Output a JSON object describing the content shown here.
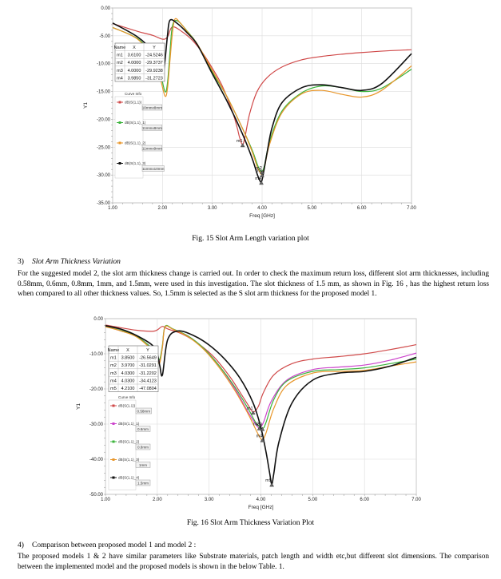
{
  "chart_data": [
    {
      "type": "line",
      "xlabel": "Freq [GHz]",
      "ylabel": "Y1",
      "xlim": [
        1.0,
        7.0
      ],
      "ylim": [
        -35.0,
        0.0
      ],
      "xticks": [
        "1.00",
        "2.00",
        "3.00",
        "4.00",
        "5.00",
        "6.00",
        "7.00"
      ],
      "yticks": [
        "0.00",
        "-5.00",
        "-10.00",
        "-15.00",
        "-20.00",
        "-25.00",
        "-30.00",
        "-35.00"
      ],
      "grid": true,
      "marker_table": {
        "headers": [
          "Name",
          "X",
          "Y"
        ],
        "rows": [
          [
            "m1",
            "3.6100",
            "-24.5246"
          ],
          [
            "m2",
            "4.0000",
            "-29.3737"
          ],
          [
            "m3",
            "4.0000",
            "-29.9238"
          ],
          [
            "m4",
            "3.9850",
            "-31.2723"
          ]
        ]
      },
      "curve_info_title": "Curve Info",
      "series": [
        {
          "name": "dB(S(1,1))",
          "label": "10mmx8mm",
          "color": "#d04a4a",
          "x": [
            1.0,
            1.5,
            1.8,
            2.0,
            2.1,
            2.2,
            2.4,
            2.6,
            2.8,
            3.0,
            3.2,
            3.4,
            3.5,
            3.55,
            3.61,
            3.66,
            3.75,
            3.9,
            4.1,
            4.4,
            4.8,
            5.2,
            5.6,
            6.0,
            6.5,
            7.0
          ],
          "y": [
            -2.8,
            -4.2,
            -4.9,
            -5.6,
            -5.2,
            -3.4,
            -4.3,
            -5.8,
            -8.0,
            -10.8,
            -14.0,
            -18.5,
            -21.5,
            -23.3,
            -24.52,
            -23.0,
            -19.0,
            -15.0,
            -12.5,
            -10.6,
            -9.3,
            -8.7,
            -8.3,
            -8.0,
            -7.7,
            -7.5
          ]
        },
        {
          "name": "dB(S(1,1)_1)",
          "label": "11mmx8mm",
          "color": "#3cb43c",
          "x": [
            1.0,
            1.5,
            1.8,
            1.95,
            2.05,
            2.1,
            2.15,
            2.2,
            2.3,
            2.5,
            2.7,
            3.0,
            3.3,
            3.6,
            3.8,
            3.9,
            3.95,
            4.0,
            4.05,
            4.15,
            4.4,
            4.8,
            5.2,
            5.6,
            6.0,
            6.4,
            7.0
          ],
          "y": [
            -3.5,
            -5.5,
            -8.5,
            -11.5,
            -15.0,
            -13.5,
            -8.0,
            -3.2,
            -2.3,
            -4.2,
            -6.5,
            -11.5,
            -16.0,
            -21.5,
            -25.5,
            -28.0,
            -29.0,
            -29.37,
            -28.2,
            -24.0,
            -18.5,
            -15.2,
            -14.0,
            -14.3,
            -15.0,
            -14.4,
            -11.0
          ]
        },
        {
          "name": "dB(S(1,1)_2)",
          "label": "11mmx9mm",
          "color": "#e8962a",
          "x": [
            1.0,
            1.5,
            1.8,
            1.95,
            2.05,
            2.1,
            2.15,
            2.2,
            2.25,
            2.35,
            2.5,
            2.7,
            3.0,
            3.3,
            3.6,
            3.8,
            3.9,
            3.95,
            4.0,
            4.05,
            4.15,
            4.4,
            4.8,
            5.2,
            5.6,
            6.0,
            6.4,
            7.0
          ],
          "y": [
            -3.5,
            -5.6,
            -9.0,
            -12.5,
            -15.8,
            -14.5,
            -9.5,
            -4.5,
            -2.0,
            -2.6,
            -4.3,
            -6.5,
            -11.2,
            -16.0,
            -21.5,
            -25.8,
            -28.5,
            -29.4,
            -29.92,
            -28.6,
            -24.5,
            -18.8,
            -15.4,
            -14.8,
            -15.5,
            -16.0,
            -14.8,
            -10.4
          ]
        },
        {
          "name": "dB(S(1,1)_3)",
          "label": "11mmx10mm",
          "color": "#111111",
          "x": [
            1.0,
            1.5,
            1.8,
            1.95,
            2.0,
            2.05,
            2.1,
            2.15,
            2.3,
            2.5,
            2.7,
            3.0,
            3.3,
            3.6,
            3.8,
            3.9,
            3.95,
            3.985,
            4.02,
            4.1,
            4.2,
            4.4,
            4.8,
            5.2,
            5.6,
            6.0,
            6.4,
            7.0
          ],
          "y": [
            -2.7,
            -5.2,
            -7.8,
            -10.8,
            -12.5,
            -9.5,
            -5.0,
            -2.2,
            -2.8,
            -4.5,
            -6.6,
            -11.8,
            -16.8,
            -22.5,
            -27.0,
            -29.8,
            -30.9,
            -31.27,
            -30.0,
            -26.0,
            -21.5,
            -17.0,
            -14.3,
            -13.8,
            -14.3,
            -14.8,
            -13.6,
            -8.2
          ]
        }
      ],
      "markers": [
        {
          "name": "m1",
          "x": 3.61,
          "y": -24.5246
        },
        {
          "name": "m2",
          "x": 4.0,
          "y": -29.3737
        },
        {
          "name": "m3",
          "x": 4.0,
          "y": -29.9238
        },
        {
          "name": "m4",
          "x": 3.985,
          "y": -31.2723
        }
      ]
    },
    {
      "type": "line",
      "xlabel": "Freq [GHz]",
      "ylabel": "Y1",
      "xlim": [
        1.0,
        7.0
      ],
      "ylim": [
        -50.0,
        0.0
      ],
      "xticks": [
        "1.00",
        "2.00",
        "3.00",
        "4.00",
        "5.00",
        "6.00",
        "7.00"
      ],
      "yticks": [
        "0.00",
        "-10.00",
        "-20.00",
        "-30.00",
        "-40.00",
        "-50.00"
      ],
      "grid": true,
      "marker_table": {
        "headers": [
          "Name",
          "X",
          "Y"
        ],
        "rows": [
          [
            "m1",
            "3.8500",
            "-26.5649"
          ],
          [
            "m2",
            "3.9700",
            "-31.0291"
          ],
          [
            "m3",
            "4.0300",
            "-31.2202"
          ],
          [
            "m4",
            "4.0300",
            "-34.4123"
          ],
          [
            "m5",
            "4.2100",
            "-47.0804"
          ]
        ]
      },
      "curve_info_title": "Curve Info",
      "series": [
        {
          "name": "dB(S(1,1))",
          "label": "0.58mm",
          "color": "#d04a4a",
          "x": [
            1.0,
            1.3,
            1.6,
            1.9,
            2.0,
            2.1,
            2.2,
            2.5,
            2.8,
            3.1,
            3.4,
            3.6,
            3.75,
            3.85,
            3.95,
            4.05,
            4.25,
            4.6,
            5.0,
            5.5,
            6.0,
            6.5,
            7.0
          ],
          "y": [
            -1.8,
            -2.6,
            -3.3,
            -3.6,
            -3.2,
            -2.2,
            -2.9,
            -4.5,
            -7.2,
            -11.0,
            -16.5,
            -21.0,
            -24.5,
            -26.56,
            -25.0,
            -21.0,
            -16.0,
            -12.8,
            -11.5,
            -10.8,
            -10.0,
            -8.8,
            -7.4
          ]
        },
        {
          "name": "dB(S(1,1)_1)",
          "label": "0.6mm",
          "color": "#cc44cc",
          "x": [
            1.0,
            1.3,
            1.6,
            1.9,
            2.0,
            2.05,
            2.1,
            2.15,
            2.3,
            2.6,
            2.9,
            3.2,
            3.5,
            3.75,
            3.9,
            3.97,
            4.05,
            4.2,
            4.5,
            5.0,
            5.5,
            6.0,
            6.5,
            7.0
          ],
          "y": [
            -2.2,
            -3.5,
            -5.0,
            -8.5,
            -11.5,
            -12.0,
            -8.0,
            -2.3,
            -3.0,
            -5.0,
            -8.5,
            -13.5,
            -20.0,
            -26.5,
            -30.0,
            -31.03,
            -29.5,
            -23.5,
            -17.5,
            -14.5,
            -13.8,
            -13.2,
            -11.8,
            -9.8
          ]
        },
        {
          "name": "dB(S(1,1)_2)",
          "label": "0.8mm",
          "color": "#3cb43c",
          "x": [
            1.0,
            1.3,
            1.6,
            1.9,
            2.0,
            2.05,
            2.1,
            2.15,
            2.3,
            2.6,
            2.9,
            3.2,
            3.5,
            3.75,
            3.9,
            4.03,
            4.1,
            4.25,
            4.5,
            5.0,
            5.5,
            6.0,
            6.5,
            7.0
          ],
          "y": [
            -2.2,
            -3.4,
            -5.0,
            -8.5,
            -11.0,
            -11.5,
            -7.5,
            -2.2,
            -2.9,
            -5.0,
            -8.5,
            -13.5,
            -19.5,
            -25.5,
            -29.5,
            -31.22,
            -29.5,
            -23.0,
            -17.8,
            -15.0,
            -14.5,
            -14.0,
            -12.8,
            -11.5
          ]
        },
        {
          "name": "dB(S(1,1)_3)",
          "label": "1mm",
          "color": "#e8962a",
          "x": [
            1.0,
            1.3,
            1.6,
            1.9,
            2.0,
            2.05,
            2.1,
            2.15,
            2.3,
            2.6,
            2.9,
            3.2,
            3.5,
            3.75,
            3.9,
            3.97,
            4.03,
            4.1,
            4.25,
            4.5,
            5.0,
            5.5,
            6.0,
            6.5,
            7.0
          ],
          "y": [
            -2.3,
            -3.5,
            -5.2,
            -9.0,
            -12.0,
            -12.5,
            -8.0,
            -2.4,
            -3.0,
            -5.2,
            -8.8,
            -14.0,
            -20.5,
            -27.0,
            -31.5,
            -33.5,
            -34.41,
            -32.5,
            -25.5,
            -19.0,
            -15.5,
            -15.0,
            -14.7,
            -13.5,
            -12.3
          ]
        },
        {
          "name": "dB(S(1,1)_4)",
          "label": "1.5mm",
          "color": "#111111",
          "x": [
            1.0,
            1.3,
            1.6,
            1.9,
            2.0,
            2.05,
            2.1,
            2.2,
            2.4,
            2.7,
            3.0,
            3.3,
            3.6,
            3.85,
            4.0,
            4.1,
            4.17,
            4.21,
            4.25,
            4.35,
            4.6,
            5.0,
            5.5,
            6.0,
            6.5,
            7.0
          ],
          "y": [
            -2.0,
            -3.0,
            -4.8,
            -7.5,
            -10.0,
            -13.5,
            -16.0,
            -6.0,
            -3.5,
            -4.8,
            -7.5,
            -11.5,
            -17.0,
            -24.0,
            -31.0,
            -38.0,
            -44.0,
            -47.08,
            -44.0,
            -35.0,
            -24.0,
            -17.5,
            -15.5,
            -15.0,
            -13.5,
            -11.0
          ]
        }
      ],
      "markers": [
        {
          "name": "m1",
          "x": 3.85,
          "y": -26.5649
        },
        {
          "name": "m2",
          "x": 3.97,
          "y": -31.0291
        },
        {
          "name": "m3",
          "x": 4.03,
          "y": -31.2202
        },
        {
          "name": "m4",
          "x": 4.03,
          "y": -34.4123
        },
        {
          "name": "m5",
          "x": 4.21,
          "y": -47.0804
        }
      ]
    }
  ],
  "doc": {
    "fig15_caption": "Fig. 15  Slot Arm Length variation plot",
    "section3_num": "3)",
    "section3_title": "Slot Arm Thickness Variation",
    "section3_para": "For the suggested model 2, the slot arm thickness change is carried out. In order to check the maximum return loss, different slot arm thicknesses, including 0.58mm, 0.6mm, 0.8mm, 1mm, and 1.5mm, were used in this investigation. The slot thickness of 1.5 mm, as shown in Fig. 16 , has the highest return loss when compared to all other thickness values. So, 1.5mm is selected as the S slot arm thickness  for the proposed model 1.",
    "fig16_caption": "Fig. 16  Slot Arm Thickness Variation Plot",
    "section4_num": "4)",
    "section4_title": "Comparison between proposed model 1 and model 2 :",
    "section4_para": "The proposed models 1 & 2 have similar parameters like Substrate materials, patch length and width etc,but different  slot dimensions. The comparison between the implemented model and the proposed models is shown in the below Table. 1."
  }
}
